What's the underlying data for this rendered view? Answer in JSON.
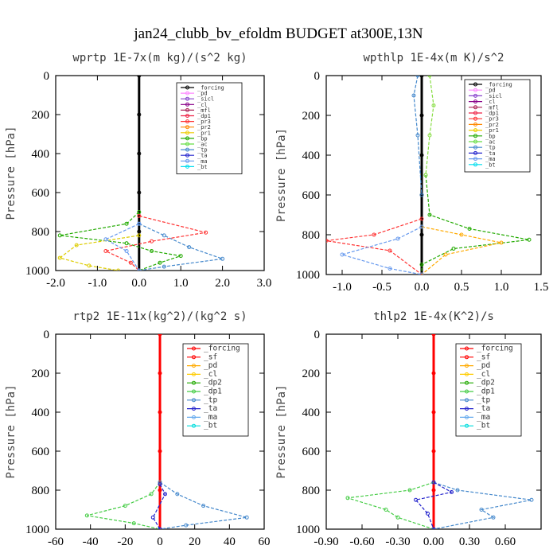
{
  "title": "jan24_clubb_bv_efoldm  BUDGET at300E,13N",
  "ylabel": "Pressure [hPa]",
  "yticks": [
    "0",
    "200",
    "400",
    "600",
    "800",
    "1000"
  ],
  "colors": {
    "forcing": "#000000",
    "sf": "#ff0000",
    "pd": "#ff00ff",
    "cl": "#ff8800",
    "dp2": "#22aa00",
    "dp1": "#44cc44",
    "tp": "#4488cc",
    "ta": "#2222cc",
    "ma": "#66aaee",
    "bt": "#00dddd"
  },
  "chart_data": [
    {
      "type": "line",
      "title": "wprtp  1E-7x(m kg)/(s^2 kg)",
      "xlim": [
        -2,
        3
      ],
      "ylim": [
        1000,
        0
      ],
      "xticks": [
        {
          "v": -2,
          "t": "-2.0"
        },
        {
          "v": -1,
          "t": "-1.0"
        },
        {
          "v": 0,
          "t": "0.0"
        },
        {
          "v": 1,
          "t": "1.0"
        },
        {
          "v": 2,
          "t": "2.0"
        },
        {
          "v": 3,
          "t": "3.0"
        }
      ],
      "legend": [
        "_forcing",
        "_pd",
        "_sicl",
        "_cl",
        "_mfl",
        "_dp1",
        "_pr3",
        "_pr2",
        "_pr1",
        "_bp",
        "_ac",
        "_tp",
        "_ta",
        "_ma",
        "_bt"
      ],
      "legend_colors": [
        "#000000",
        "#ff88ff",
        "#8844cc",
        "#880088",
        "#aa2255",
        "#ee2244",
        "#ff3333",
        "#ff8800",
        "#eecc00",
        "#22aa00",
        "#66dd44",
        "#4488cc",
        "#2222cc",
        "#6699ee",
        "#00ddee"
      ],
      "series": [
        {
          "name": "_forcing",
          "color": "#000000",
          "points": [
            [
              0,
              0
            ],
            [
              0,
              200
            ],
            [
              0,
              400
            ],
            [
              0,
              600
            ],
            [
              0,
              800
            ],
            [
              0,
              1000
            ]
          ]
        },
        {
          "name": "_bp",
          "color": "#22aa00",
          "points": [
            [
              0,
              700
            ],
            [
              -0.3,
              760
            ],
            [
              -1.9,
              820
            ],
            [
              -0.3,
              860
            ],
            [
              0.3,
              900
            ],
            [
              1.0,
              925
            ],
            [
              0.5,
              960
            ],
            [
              0,
              1000
            ]
          ]
        },
        {
          "name": "_ac",
          "color": "#ddcc00",
          "points": [
            [
              0,
              820
            ],
            [
              -1.5,
              870
            ],
            [
              -1.9,
              935
            ],
            [
              -1.2,
              975
            ],
            [
              -0.5,
              1000
            ]
          ]
        },
        {
          "name": "_tp",
          "color": "#4488cc",
          "points": [
            [
              0,
              760
            ],
            [
              0.6,
              820
            ],
            [
              1.2,
              880
            ],
            [
              2.0,
              940
            ],
            [
              0.6,
              980
            ],
            [
              0,
              1000
            ]
          ]
        },
        {
          "name": "_pr1",
          "color": "#ff3333",
          "points": [
            [
              0,
              720
            ],
            [
              1.6,
              805
            ],
            [
              0.3,
              850
            ],
            [
              -0.8,
              900
            ],
            [
              -0.2,
              960
            ],
            [
              0,
              1000
            ]
          ]
        },
        {
          "name": "_ma",
          "color": "#6699ee",
          "points": [
            [
              0,
              760
            ],
            [
              -0.8,
              840
            ],
            [
              -0.3,
              900
            ],
            [
              0,
              1000
            ]
          ]
        }
      ]
    },
    {
      "type": "line",
      "title": "wpthlp  1E-4x(m K)/s^2",
      "xlim": [
        -1.2,
        1.5
      ],
      "ylim": [
        1000,
        0
      ],
      "xticks": [
        {
          "v": -1,
          "t": "-1.0"
        },
        {
          "v": -0.5,
          "t": "-0.5"
        },
        {
          "v": 0,
          "t": "0.0"
        },
        {
          "v": 0.5,
          "t": "0.5"
        },
        {
          "v": 1,
          "t": "1.0"
        },
        {
          "v": 1.5,
          "t": "1.5"
        }
      ],
      "legend": [
        "_forcing",
        "_pd",
        "_sicl",
        "_cl",
        "_mfl",
        "_dp1",
        "_pr3",
        "_pr2",
        "_pr1",
        "_bp",
        "_ac",
        "_tp",
        "_ta",
        "_ma",
        "_bt"
      ],
      "legend_colors": [
        "#000000",
        "#ff88ff",
        "#8844cc",
        "#880088",
        "#aa2255",
        "#ee2244",
        "#ff3333",
        "#ff8800",
        "#eecc00",
        "#22aa00",
        "#66dd44",
        "#4488cc",
        "#2222cc",
        "#6699ee",
        "#00ddee"
      ],
      "series": [
        {
          "name": "_forcing",
          "color": "#000000",
          "points": [
            [
              0,
              0
            ],
            [
              0,
              200
            ],
            [
              0,
              400
            ],
            [
              0,
              600
            ],
            [
              0,
              800
            ],
            [
              0,
              1000
            ]
          ]
        },
        {
          "name": "_bp",
          "color": "#22aa00",
          "points": [
            [
              0.05,
              500
            ],
            [
              0.1,
              700
            ],
            [
              0.6,
              770
            ],
            [
              1.35,
              825
            ],
            [
              0.4,
              870
            ],
            [
              0,
              950
            ],
            [
              0,
              1000
            ]
          ]
        },
        {
          "name": "_pr2",
          "color": "#ffaa00",
          "points": [
            [
              0,
              760
            ],
            [
              0.5,
              800
            ],
            [
              1.0,
              840
            ],
            [
              0.3,
              900
            ],
            [
              0,
              1000
            ]
          ]
        },
        {
          "name": "_pr1",
          "color": "#ff3333",
          "points": [
            [
              0,
              720
            ],
            [
              -0.6,
              800
            ],
            [
              -1.2,
              830
            ],
            [
              -0.4,
              880
            ],
            [
              0,
              1000
            ]
          ]
        },
        {
          "name": "_ma",
          "color": "#6699ee",
          "points": [
            [
              0,
              760
            ],
            [
              -0.3,
              820
            ],
            [
              -1.0,
              900
            ],
            [
              -0.4,
              970
            ],
            [
              0,
              1000
            ]
          ]
        },
        {
          "name": "_ac",
          "color": "#88dd44",
          "points": [
            [
              0.1,
              0
            ],
            [
              0.15,
              150
            ],
            [
              0.1,
              300
            ],
            [
              0.05,
              500
            ]
          ]
        },
        {
          "name": "_tp",
          "color": "#4488cc",
          "points": [
            [
              -0.05,
              0
            ],
            [
              -0.1,
              100
            ],
            [
              -0.05,
              300
            ],
            [
              0,
              600
            ]
          ]
        }
      ]
    },
    {
      "type": "line",
      "title": "rtp2  1E-11x(kg^2)/(kg^2 s)",
      "xlim": [
        -60,
        60
      ],
      "ylim": [
        1000,
        0
      ],
      "xticks": [
        {
          "v": -60,
          "t": "-60"
        },
        {
          "v": -40,
          "t": "-40"
        },
        {
          "v": -20,
          "t": "-20"
        },
        {
          "v": 0,
          "t": "0"
        },
        {
          "v": 20,
          "t": "20"
        },
        {
          "v": 40,
          "t": "40"
        },
        {
          "v": 60,
          "t": "60"
        }
      ],
      "legend": [
        "_forcing",
        "_sf",
        "_pd",
        "_cl",
        "_dp2",
        "_dp1",
        "_tp",
        "_ta",
        "_ma",
        "_bt"
      ],
      "legend_colors": [
        "#ff0000",
        "#ff0000",
        "#ffaa00",
        "#ffcc00",
        "#22aa00",
        "#44cc44",
        "#4488cc",
        "#2222cc",
        "#66aaee",
        "#00dddd"
      ],
      "series": [
        {
          "name": "_forcing",
          "color": "#ff0000",
          "points": [
            [
              0,
              0
            ],
            [
              0,
              200
            ],
            [
              0,
              400
            ],
            [
              0,
              600
            ],
            [
              0,
              800
            ],
            [
              0,
              1000
            ]
          ]
        },
        {
          "name": "_dp1",
          "color": "#44cc44",
          "points": [
            [
              0,
              760
            ],
            [
              -5,
              820
            ],
            [
              -20,
              880
            ],
            [
              -42,
              930
            ],
            [
              -15,
              970
            ],
            [
              0,
              1000
            ]
          ]
        },
        {
          "name": "_tp",
          "color": "#4488cc",
          "points": [
            [
              0,
              760
            ],
            [
              10,
              820
            ],
            [
              25,
              880
            ],
            [
              50,
              940
            ],
            [
              15,
              980
            ],
            [
              0,
              1000
            ]
          ]
        },
        {
          "name": "_ta",
          "color": "#2222cc",
          "points": [
            [
              0,
              770
            ],
            [
              3,
              820
            ],
            [
              -4,
              940
            ],
            [
              0,
              1000
            ]
          ]
        }
      ]
    },
    {
      "type": "line",
      "title": "thlp2  1E-4x(K^2)/s",
      "xlim": [
        -0.9,
        0.9
      ],
      "ylim": [
        1000,
        0
      ],
      "xticks": [
        {
          "v": -0.9,
          "t": "-0.90"
        },
        {
          "v": -0.6,
          "t": "-0.60"
        },
        {
          "v": -0.3,
          "t": "-0.30"
        },
        {
          "v": 0,
          "t": "0.00"
        },
        {
          "v": 0.3,
          "t": "0.30"
        },
        {
          "v": 0.6,
          "t": "0.60"
        }
      ],
      "legend": [
        "_forcing",
        "_sf",
        "_pd",
        "_cl",
        "_dp2",
        "_dp1",
        "_tp",
        "_ta",
        "_ma",
        "_bt"
      ],
      "legend_colors": [
        "#ff0000",
        "#ff0000",
        "#ffaa00",
        "#ffcc00",
        "#22aa00",
        "#44cc44",
        "#4488cc",
        "#2222cc",
        "#66aaee",
        "#00dddd"
      ],
      "series": [
        {
          "name": "_forcing",
          "color": "#ff0000",
          "points": [
            [
              0,
              0
            ],
            [
              0,
              200
            ],
            [
              0,
              400
            ],
            [
              0,
              600
            ],
            [
              0,
              800
            ],
            [
              0,
              1000
            ]
          ]
        },
        {
          "name": "_dp1",
          "color": "#44cc44",
          "points": [
            [
              0,
              760
            ],
            [
              -0.2,
              800
            ],
            [
              -0.72,
              840
            ],
            [
              -0.4,
              900
            ],
            [
              -0.3,
              940
            ],
            [
              0,
              1000
            ]
          ]
        },
        {
          "name": "_tp",
          "color": "#4488cc",
          "points": [
            [
              0,
              760
            ],
            [
              0.2,
              800
            ],
            [
              0.82,
              850
            ],
            [
              0.4,
              900
            ],
            [
              0.5,
              940
            ],
            [
              0,
              1000
            ]
          ]
        },
        {
          "name": "_ta",
          "color": "#2222cc",
          "points": [
            [
              0,
              760
            ],
            [
              0.15,
              810
            ],
            [
              -0.15,
              850
            ],
            [
              -0.05,
              920
            ],
            [
              0,
              1000
            ]
          ]
        }
      ]
    }
  ]
}
